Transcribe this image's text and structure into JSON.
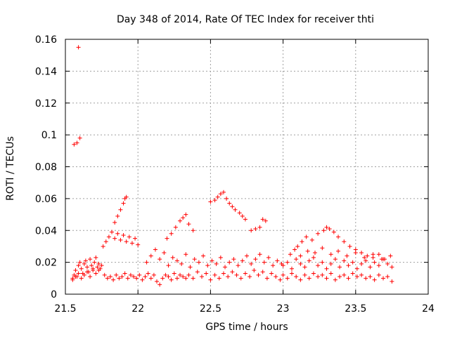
{
  "chart_data": {
    "type": "scatter",
    "title": "Day 348 of 2014, Rate Of TEC Index for receiver thti",
    "xlabel": "GPS time / hours",
    "ylabel": "ROTI / TECUs",
    "xlim": [
      21.5,
      24
    ],
    "ylim": [
      0,
      0.16
    ],
    "grid": true,
    "marker": "+",
    "color": "#ff0000",
    "x_ticks": [
      "21.5",
      "22",
      "22.5",
      "23",
      "23.5",
      "24"
    ],
    "y_ticks": [
      "0",
      "0.02",
      "0.04",
      "0.06",
      "0.08",
      "0.1",
      "0.12",
      "0.14",
      "0.16"
    ],
    "series": [
      {
        "name": "ROTI",
        "x": [
          21.55,
          21.56,
          21.57,
          21.58,
          21.59,
          21.6,
          21.61,
          21.62,
          21.63,
          21.64,
          21.65,
          21.66,
          21.67,
          21.68,
          21.69,
          21.7,
          21.71,
          21.72,
          21.73,
          21.74,
          21.55,
          21.57,
          21.59,
          21.61,
          21.63,
          21.65,
          21.67,
          21.69,
          21.71,
          21.73,
          21.75,
          21.77,
          21.79,
          21.81,
          21.83,
          21.85,
          21.87,
          21.89,
          21.91,
          21.93,
          21.95,
          21.97,
          21.99,
          22.01,
          22.03,
          22.05,
          22.07,
          22.09,
          22.11,
          22.13,
          22.15,
          22.17,
          22.19,
          22.21,
          22.23,
          22.25,
          22.27,
          22.29,
          22.31,
          22.33,
          21.56,
          21.58,
          21.6,
          21.59,
          21.76,
          21.78,
          21.8,
          21.82,
          21.84,
          21.86,
          21.88,
          21.9,
          21.92,
          21.94,
          21.96,
          21.98,
          22.0,
          21.84,
          21.86,
          21.88,
          21.9,
          21.91,
          21.92,
          22.06,
          22.09,
          22.12,
          22.15,
          22.18,
          22.21,
          22.24,
          22.27,
          22.3,
          22.33,
          22.36,
          22.39,
          22.42,
          22.45,
          22.48,
          22.51,
          22.54,
          22.57,
          22.6,
          22.63,
          22.66,
          22.69,
          22.72,
          22.75,
          22.78,
          22.81,
          22.84,
          22.87,
          22.9,
          22.93,
          22.96,
          22.99,
          22.2,
          22.23,
          22.26,
          22.29,
          22.31,
          22.33,
          22.35,
          22.38,
          22.5,
          22.53,
          22.55,
          22.57,
          22.59,
          22.61,
          22.63,
          22.65,
          22.67,
          22.7,
          22.72,
          22.74,
          22.35,
          22.38,
          22.41,
          22.44,
          22.47,
          22.5,
          22.53,
          22.56,
          22.59,
          22.62,
          22.65,
          22.68,
          22.71,
          22.74,
          22.77,
          22.8,
          22.83,
          22.86,
          22.89,
          22.92,
          22.95,
          22.98,
          22.78,
          22.81,
          22.84,
          22.86,
          22.88,
          23.0,
          23.03,
          23.06,
          23.09,
          23.12,
          23.15,
          23.18,
          23.21,
          23.24,
          23.27,
          23.3,
          23.33,
          23.36,
          23.39,
          23.42,
          23.45,
          23.48,
          23.51,
          23.54,
          23.57,
          23.6,
          23.63,
          23.66,
          23.69,
          23.72,
          23.75,
          23.0,
          23.03,
          23.06,
          23.09,
          23.12,
          23.15,
          23.18,
          23.21,
          23.24,
          23.27,
          23.3,
          23.33,
          23.36,
          23.39,
          23.42,
          23.45,
          23.48,
          23.51,
          23.54,
          23.57,
          23.6,
          23.63,
          23.66,
          23.69,
          23.72,
          23.75,
          23.1,
          23.13,
          23.16,
          23.2,
          23.24,
          23.28,
          23.3,
          23.32,
          23.35,
          23.38,
          23.42,
          23.46,
          23.5,
          23.54,
          23.58,
          23.62,
          23.66,
          23.7,
          23.05,
          23.08,
          23.12,
          23.17,
          23.22,
          23.27,
          23.33,
          23.38,
          23.44,
          23.5,
          23.56,
          23.62,
          23.68,
          23.74
        ],
        "y": [
          0.01,
          0.012,
          0.015,
          0.011,
          0.018,
          0.02,
          0.016,
          0.013,
          0.019,
          0.021,
          0.017,
          0.014,
          0.022,
          0.018,
          0.015,
          0.02,
          0.023,
          0.017,
          0.019,
          0.016,
          0.009,
          0.011,
          0.013,
          0.01,
          0.012,
          0.014,
          0.011,
          0.016,
          0.013,
          0.015,
          0.018,
          0.012,
          0.01,
          0.011,
          0.009,
          0.012,
          0.01,
          0.011,
          0.013,
          0.01,
          0.012,
          0.011,
          0.01,
          0.012,
          0.009,
          0.011,
          0.013,
          0.01,
          0.012,
          0.008,
          0.006,
          0.01,
          0.012,
          0.011,
          0.009,
          0.013,
          0.01,
          0.012,
          0.011,
          0.01,
          0.094,
          0.095,
          0.098,
          0.155,
          0.03,
          0.033,
          0.036,
          0.039,
          0.035,
          0.038,
          0.034,
          0.037,
          0.033,
          0.036,
          0.032,
          0.035,
          0.031,
          0.045,
          0.049,
          0.053,
          0.057,
          0.06,
          0.061,
          0.02,
          0.024,
          0.028,
          0.022,
          0.026,
          0.018,
          0.023,
          0.021,
          0.019,
          0.025,
          0.017,
          0.022,
          0.02,
          0.024,
          0.018,
          0.021,
          0.019,
          0.023,
          0.017,
          0.02,
          0.022,
          0.018,
          0.021,
          0.024,
          0.019,
          0.022,
          0.025,
          0.02,
          0.023,
          0.018,
          0.021,
          0.019,
          0.035,
          0.038,
          0.042,
          0.046,
          0.048,
          0.05,
          0.044,
          0.04,
          0.058,
          0.059,
          0.061,
          0.063,
          0.064,
          0.06,
          0.057,
          0.055,
          0.053,
          0.051,
          0.049,
          0.047,
          0.012,
          0.01,
          0.014,
          0.011,
          0.013,
          0.009,
          0.012,
          0.01,
          0.013,
          0.011,
          0.014,
          0.012,
          0.01,
          0.013,
          0.011,
          0.015,
          0.012,
          0.014,
          0.01,
          0.013,
          0.011,
          0.009,
          0.04,
          0.041,
          0.042,
          0.047,
          0.046,
          0.018,
          0.02,
          0.016,
          0.022,
          0.019,
          0.017,
          0.021,
          0.023,
          0.018,
          0.02,
          0.016,
          0.019,
          0.022,
          0.017,
          0.021,
          0.018,
          0.02,
          0.016,
          0.019,
          0.021,
          0.017,
          0.02,
          0.018,
          0.022,
          0.019,
          0.017,
          0.012,
          0.01,
          0.013,
          0.011,
          0.009,
          0.012,
          0.01,
          0.013,
          0.011,
          0.012,
          0.01,
          0.013,
          0.009,
          0.011,
          0.012,
          0.01,
          0.013,
          0.011,
          0.012,
          0.01,
          0.011,
          0.009,
          0.012,
          0.01,
          0.011,
          0.008,
          0.03,
          0.033,
          0.036,
          0.034,
          0.038,
          0.04,
          0.042,
          0.041,
          0.039,
          0.036,
          0.033,
          0.03,
          0.028,
          0.026,
          0.024,
          0.023,
          0.025,
          0.022,
          0.025,
          0.028,
          0.024,
          0.027,
          0.026,
          0.029,
          0.025,
          0.027,
          0.024,
          0.026,
          0.023,
          0.025,
          0.022,
          0.024
        ]
      }
    ]
  }
}
